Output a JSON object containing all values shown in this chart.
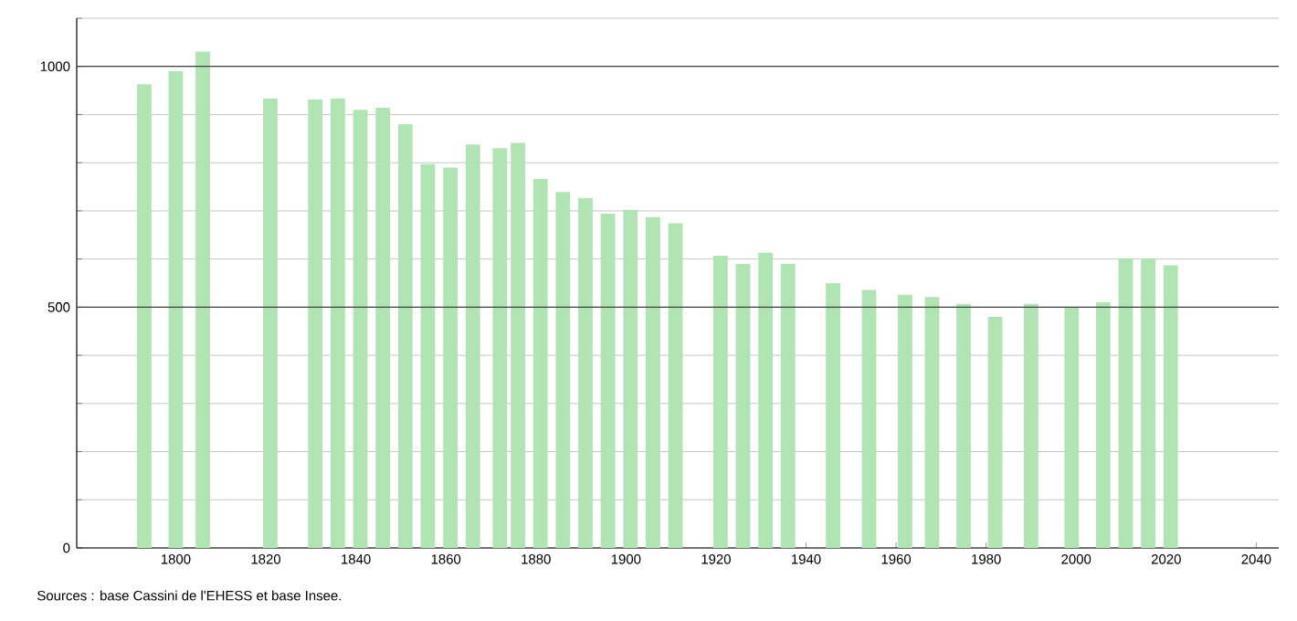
{
  "chart_data": {
    "type": "bar",
    "x": [
      1793,
      1800,
      1806,
      1821,
      1831,
      1836,
      1841,
      1846,
      1851,
      1856,
      1861,
      1866,
      1872,
      1876,
      1881,
      1886,
      1891,
      1896,
      1901,
      1906,
      1911,
      1921,
      1926,
      1931,
      1936,
      1946,
      1954,
      1962,
      1968,
      1975,
      1982,
      1990,
      1999,
      2006,
      2011,
      2016,
      2021
    ],
    "values": [
      963,
      990,
      1031,
      933,
      931,
      933,
      910,
      914,
      880,
      797,
      790,
      838,
      830,
      841,
      766,
      739,
      727,
      694,
      702,
      687,
      674,
      607,
      590,
      613,
      590,
      550,
      536,
      526,
      521,
      507,
      480,
      507,
      499,
      510,
      601,
      601,
      587
    ],
    "color": "#b0e4b2",
    "xlim": [
      1778,
      2045
    ],
    "xticks": [
      1800,
      1820,
      1840,
      1860,
      1880,
      1900,
      1920,
      1940,
      1960,
      1980,
      2000,
      2020,
      2040
    ],
    "ylim": [
      0,
      1100
    ],
    "yticks": [
      0,
      {
        "value": 100,
        "label": null
      },
      {
        "value": 200,
        "label": null
      },
      {
        "value": 300,
        "label": null
      },
      {
        "value": 400,
        "label": null
      },
      500,
      {
        "value": 600,
        "label": null
      },
      {
        "value": 700,
        "label": null
      },
      {
        "value": 800,
        "label": null
      },
      {
        "value": 900,
        "label": null
      },
      1000,
      {
        "value": 1100,
        "label": null
      }
    ],
    "grid": "y",
    "annotations": [
      "Sources : base Cassini de l'EHESS et base Insee."
    ]
  }
}
